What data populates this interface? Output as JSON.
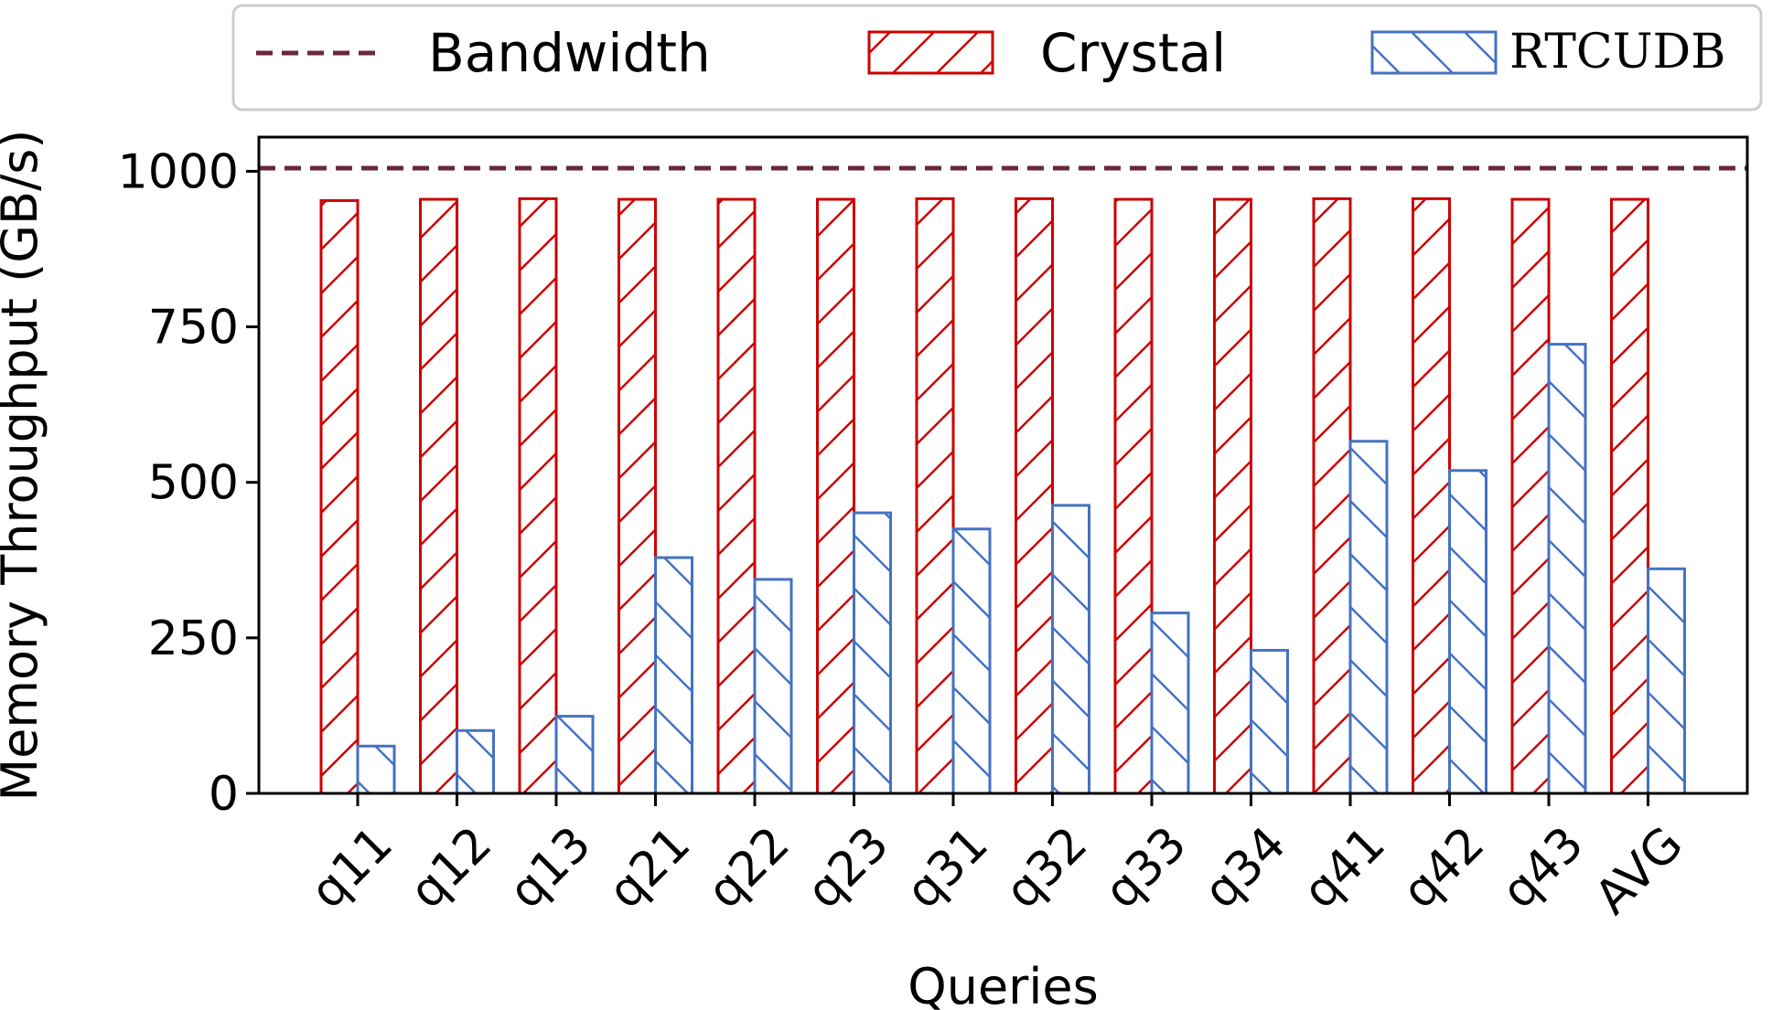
{
  "chart_data": {
    "type": "bar",
    "xlabel": "Queries",
    "ylabel": "Memory Throughput (GB/s)",
    "ylim": [
      0,
      1055
    ],
    "yticks": [
      0,
      250,
      500,
      750,
      1000
    ],
    "categories": [
      "q11",
      "q12",
      "q13",
      "q21",
      "q22",
      "q23",
      "q31",
      "q32",
      "q33",
      "q34",
      "q41",
      "q42",
      "q43",
      "AVG"
    ],
    "series": [
      {
        "name": "Crystal",
        "color": "#cc0000",
        "hatch": "forward-diagonal",
        "values": [
          953,
          955,
          956,
          955,
          955,
          955,
          956,
          956,
          955,
          955,
          956,
          956,
          955,
          955
        ]
      },
      {
        "name": "RTCUDB",
        "color": "#4472c4",
        "hatch": "backward-diagonal",
        "values": [
          76,
          101,
          124,
          379,
          344,
          451,
          425,
          463,
          290,
          230,
          566,
          519,
          722,
          361
        ]
      }
    ],
    "reference_line": {
      "name": "Bandwidth",
      "value": 1005,
      "color": "#6b2737",
      "style": "dashed"
    },
    "legend": {
      "placement": "top",
      "columns": 3
    },
    "grid": false
  }
}
